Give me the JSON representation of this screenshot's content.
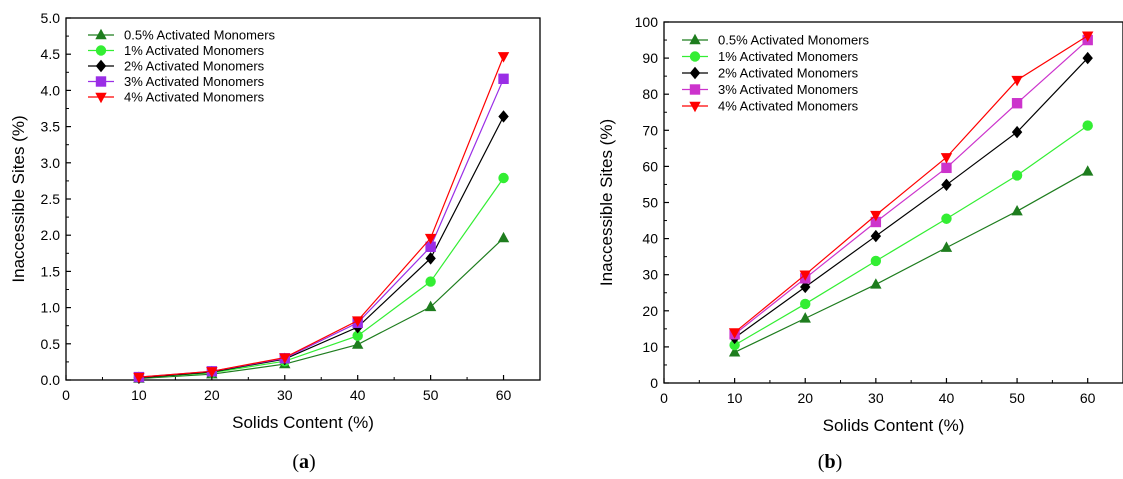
{
  "chart_data": [
    {
      "type": "line",
      "panel_label": "a",
      "title": "",
      "xlabel": "Solids Content (%)",
      "ylabel": "Inaccessible Sites (%)",
      "xlim": [
        0,
        65
      ],
      "ylim": [
        0,
        5.0
      ],
      "xticks": [
        0,
        10,
        20,
        30,
        40,
        50,
        60
      ],
      "xtick_labels": [
        "0",
        "10",
        "20",
        "30",
        "40",
        "50",
        "60"
      ],
      "yticks": [
        0,
        0.5,
        1.0,
        1.5,
        2.0,
        2.5,
        3.0,
        3.5,
        4.0,
        4.5,
        5.0
      ],
      "ytick_labels": [
        "0.0",
        "0.5",
        "1.0",
        "1.5",
        "2.0",
        "2.5",
        "3.0",
        "3.5",
        "4.0",
        "4.5",
        "5.0"
      ],
      "grid": false,
      "legend": "top-left",
      "x": [
        10,
        20,
        30,
        40,
        50,
        60
      ],
      "series": [
        {
          "name": "0.5% Activated Monomers",
          "color": "#1e7d1e",
          "marker": "triangle-up",
          "values": [
            0.02,
            0.08,
            0.22,
            0.49,
            1.01,
            1.96
          ]
        },
        {
          "name": "1% Activated Monomers",
          "color": "#33ee33",
          "marker": "circle",
          "values": [
            0.03,
            0.1,
            0.26,
            0.61,
            1.36,
            2.79
          ]
        },
        {
          "name": "2% Activated Monomers",
          "color": "#000000",
          "marker": "diamond",
          "values": [
            0.03,
            0.11,
            0.29,
            0.73,
            1.68,
            3.64
          ]
        },
        {
          "name": "3% Activated Monomers",
          "color": "#9a2ee6",
          "marker": "square",
          "values": [
            0.04,
            0.12,
            0.3,
            0.79,
            1.84,
            4.16
          ]
        },
        {
          "name": "4% Activated Monomers",
          "color": "#ff0000",
          "marker": "triangle-down",
          "values": [
            0.04,
            0.12,
            0.31,
            0.82,
            1.96,
            4.47
          ]
        }
      ]
    },
    {
      "type": "line",
      "panel_label": "b",
      "title": "",
      "xlabel": "Solids Content (%)",
      "ylabel": "Inaccessible Sites (%)",
      "xlim": [
        0,
        65
      ],
      "ylim": [
        0,
        100
      ],
      "xticks": [
        0,
        10,
        20,
        30,
        40,
        50,
        60
      ],
      "xtick_labels": [
        "0",
        "10",
        "20",
        "30",
        "40",
        "50",
        "60"
      ],
      "yticks": [
        0,
        10,
        20,
        30,
        40,
        50,
        60,
        70,
        80,
        90,
        100
      ],
      "ytick_labels": [
        "0",
        "10",
        "20",
        "30",
        "40",
        "50",
        "60",
        "70",
        "80",
        "90",
        "100"
      ],
      "grid": false,
      "legend": "top-left",
      "x": [
        10,
        20,
        30,
        40,
        50,
        60
      ],
      "series": [
        {
          "name": "0.5% Activated Monomers",
          "color": "#1e7d1e",
          "marker": "triangle-up",
          "values": [
            8.5,
            17.9,
            27.3,
            37.5,
            47.6,
            58.6
          ]
        },
        {
          "name": "1% Activated Monomers",
          "color": "#33ee33",
          "marker": "circle",
          "values": [
            10.5,
            21.9,
            33.8,
            45.5,
            57.5,
            71.3
          ]
        },
        {
          "name": "2% Activated Monomers",
          "color": "#000000",
          "marker": "diamond",
          "values": [
            12.5,
            26.6,
            40.7,
            54.9,
            69.5,
            90.0
          ]
        },
        {
          "name": "3% Activated Monomers",
          "color": "#cc33cc",
          "marker": "square",
          "values": [
            13.5,
            29.0,
            44.6,
            59.6,
            77.5,
            95.0
          ]
        },
        {
          "name": "4% Activated Monomers",
          "color": "#ff0000",
          "marker": "triangle-down",
          "values": [
            14.0,
            30.0,
            46.5,
            62.5,
            83.9,
            96.2
          ]
        }
      ]
    }
  ]
}
